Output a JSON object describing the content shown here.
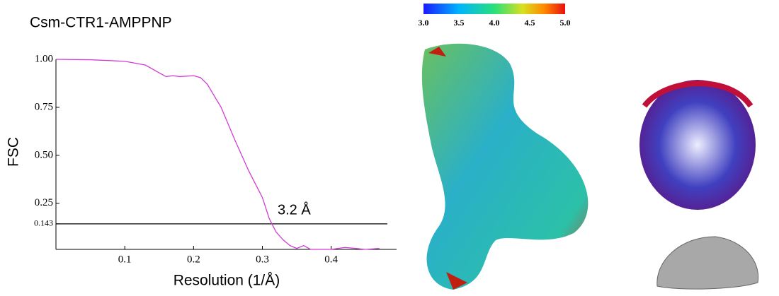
{
  "chart_data": {
    "type": "line",
    "title": "Csm-CTR1-AMPPNP",
    "x_label": "Resolution (1/Å)",
    "y_label": "FSC",
    "annotation": "3.2 Å",
    "x": [
      0,
      0.05,
      0.1,
      0.13,
      0.15,
      0.16,
      0.17,
      0.18,
      0.2,
      0.21,
      0.22,
      0.24,
      0.26,
      0.28,
      0.3,
      0.31,
      0.32,
      0.33,
      0.34,
      0.35,
      0.36,
      0.37,
      0.4,
      0.42,
      0.45,
      0.47
    ],
    "series": [
      {
        "color": "#d23ad6",
        "values": [
          1.0,
          0.998,
          0.99,
          0.97,
          0.93,
          0.91,
          0.915,
          0.91,
          0.915,
          0.905,
          0.87,
          0.75,
          0.58,
          0.42,
          0.28,
          0.17,
          0.1,
          0.06,
          0.03,
          0.015,
          0.03,
          0.01,
          0.01,
          0.02,
          0.01,
          0.015
        ]
      }
    ],
    "xlim": [
      0,
      0.495
    ],
    "ylim": [
      0.01,
      1.0
    ],
    "xticks": [
      0.1,
      0.2,
      0.3,
      0.4
    ],
    "yticks": [
      {
        "value": 1.0,
        "label": "1.00"
      },
      {
        "value": 0.75,
        "label": "0.75"
      },
      {
        "value": 0.5,
        "label": "0.50"
      },
      {
        "value": 0.25,
        "label": "0.25"
      },
      0.143
    ]
  },
  "colorbar": {
    "lim": [
      3.0,
      5.0
    ],
    "ticks": [
      {
        "value": 3.0,
        "label": "3.0"
      },
      3.5,
      {
        "value": 4.0,
        "label": "4.0"
      },
      4.5,
      {
        "value": 5.0,
        "label": "5.0"
      }
    ]
  }
}
